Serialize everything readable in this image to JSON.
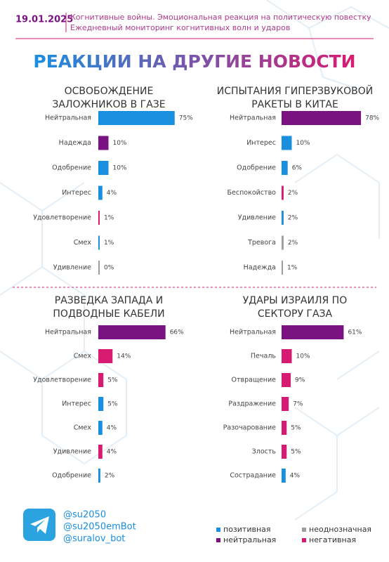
{
  "header": {
    "date": "19.01.2025",
    "subtitle": "Когнитивные войны. Эмоциональная реакция на политическую повестку",
    "subtitle2": "Ежедневный мониторинг когнитивных волн и ударов",
    "title": "РЕАКЦИИ НА ДРУГИЕ НОВОСТИ"
  },
  "chart_data": [
    {
      "type": "bar",
      "orientation": "horizontal",
      "title": [
        "ОСВОБОЖДЕНИЕ",
        "ЗАЛОЖНИКОВ В ГАЗЕ"
      ],
      "categories": [
        "Нейтральная",
        "Надежда",
        "Одобрение",
        "Интерес",
        "Удовлетворение",
        "Смех",
        "Удивление"
      ],
      "values": [
        75,
        10,
        10,
        4,
        1,
        1,
        0
      ],
      "value_labels": [
        "75%",
        "10%",
        "10%",
        "4%",
        "1%",
        "1%",
        "0%"
      ],
      "colors": [
        "#1a8fe0",
        "#7a1282",
        "#1a8fe0",
        "#1a8fe0",
        "#d81b72",
        "#1a8fe0",
        "#9e9e9e"
      ]
    },
    {
      "type": "bar",
      "orientation": "horizontal",
      "title": [
        "ИСПЫТАНИЯ ГИПЕРЗВУКОВОЙ",
        "РАКЕТЫ В КИТАЕ"
      ],
      "categories": [
        "Нейтральная",
        "Интерес",
        "Одобрение",
        "Беспокойство",
        "Удивление",
        "Тревога",
        "Надежда"
      ],
      "values": [
        78,
        10,
        6,
        2,
        2,
        2,
        1
      ],
      "value_labels": [
        "78%",
        "10%",
        "6%",
        "2%",
        "2%",
        "2%",
        "1%"
      ],
      "colors": [
        "#7a1282",
        "#1a8fe0",
        "#1a8fe0",
        "#d81b72",
        "#1a8fe0",
        "#9e9e9e",
        "#9e9e9e"
      ]
    },
    {
      "type": "bar",
      "orientation": "horizontal",
      "title": [
        "РАЗВЕДКА ЗАПАДА И",
        "ПОДВОДНЫЕ КАБЕЛИ"
      ],
      "categories": [
        "Нейтральная",
        "Смех",
        "Удовлетворение",
        "Интерес",
        "Смех",
        "Удивление",
        "Одобрение"
      ],
      "values": [
        66,
        14,
        5,
        5,
        4,
        4,
        2
      ],
      "value_labels": [
        "66%",
        "14%",
        "5%",
        "5%",
        "4%",
        "4%",
        "2%"
      ],
      "colors": [
        "#7a1282",
        "#d81b72",
        "#d81b72",
        "#1a8fe0",
        "#1a8fe0",
        "#d81b72",
        "#1a8fe0"
      ]
    },
    {
      "type": "bar",
      "orientation": "horizontal",
      "title": [
        "УДАРЫ ИЗРАИЛЯ ПО",
        "СЕКТОРУ ГАЗА"
      ],
      "categories": [
        "Нейтральная",
        "Печаль",
        "Отвращение",
        "Раздражение",
        "Разочарование",
        "Злость",
        "Сострадание"
      ],
      "values": [
        61,
        10,
        9,
        7,
        5,
        5,
        4
      ],
      "value_labels": [
        "61%",
        "10%",
        "9%",
        "7%",
        "5%",
        "5%",
        "4%"
      ],
      "colors": [
        "#7a1282",
        "#d81b72",
        "#d81b72",
        "#d81b72",
        "#d81b72",
        "#d81b72",
        "#1a8fe0"
      ]
    }
  ],
  "legend": [
    {
      "name": "позитивная",
      "color": "#1a8fe0"
    },
    {
      "name": "неоднозначная",
      "color": "#9e9e9e"
    },
    {
      "name": "нейтральная",
      "color": "#7a1282"
    },
    {
      "name": "негативная",
      "color": "#d81b72"
    }
  ],
  "footer": {
    "handles": [
      "@su2050",
      "@su2050emBot",
      "@suralov_bot"
    ]
  }
}
